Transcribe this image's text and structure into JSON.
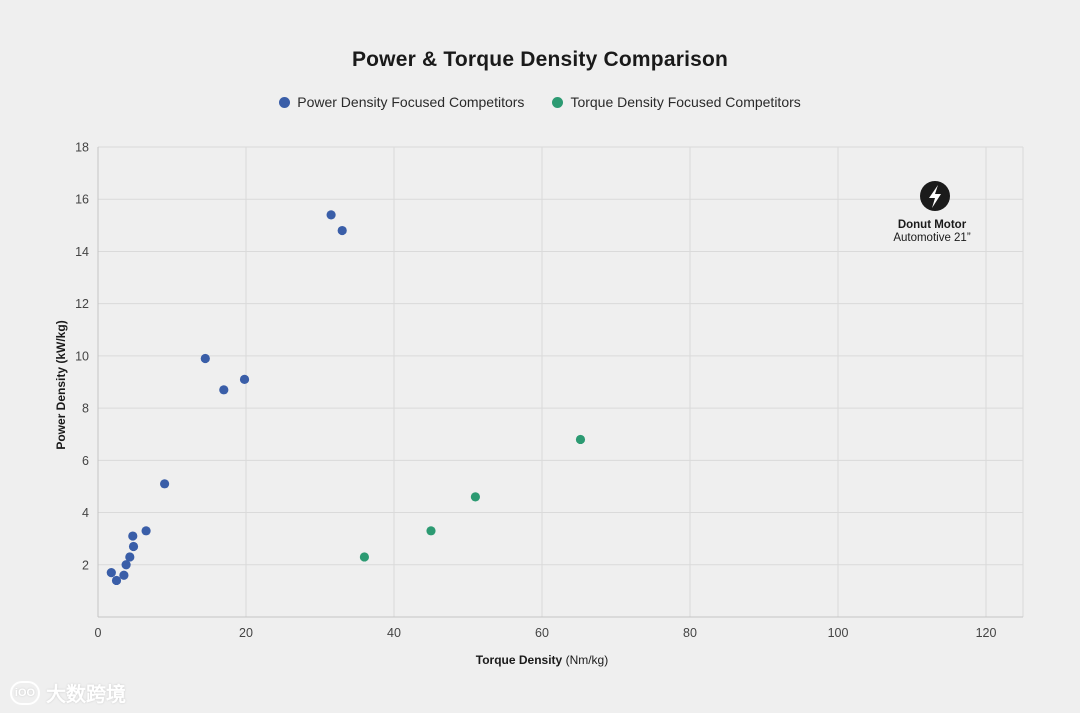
{
  "chart_data": {
    "type": "scatter",
    "title": "Power & Torque Density Comparison",
    "xlabel_bold": "Torque Density",
    "xlabel_unit": " (Nm/kg)",
    "ylabel": "Power Density (kW/kg)",
    "xlim": [
      0,
      125
    ],
    "ylim": [
      0,
      18
    ],
    "xticks": [
      0,
      20,
      40,
      60,
      80,
      100,
      120
    ],
    "yticks": [
      2,
      4,
      6,
      8,
      10,
      12,
      14,
      16,
      18
    ],
    "grid": true,
    "legend_position": "top-center",
    "series": [
      {
        "name": "Power Density Focused Competitors",
        "color": "#3a5ea8",
        "points": [
          {
            "x": 1.8,
            "y": 1.7
          },
          {
            "x": 2.5,
            "y": 1.4
          },
          {
            "x": 3.5,
            "y": 1.6
          },
          {
            "x": 3.8,
            "y": 2.0
          },
          {
            "x": 4.3,
            "y": 2.3
          },
          {
            "x": 4.8,
            "y": 2.7
          },
          {
            "x": 4.7,
            "y": 3.1
          },
          {
            "x": 6.5,
            "y": 3.3
          },
          {
            "x": 9.0,
            "y": 5.1
          },
          {
            "x": 14.5,
            "y": 9.9
          },
          {
            "x": 17.0,
            "y": 8.7
          },
          {
            "x": 19.8,
            "y": 9.1
          },
          {
            "x": 31.5,
            "y": 15.4
          },
          {
            "x": 33.0,
            "y": 14.8
          }
        ]
      },
      {
        "name": "Torque Density Focused Competitors",
        "color": "#2c9a72",
        "points": [
          {
            "x": 36.0,
            "y": 2.3
          },
          {
            "x": 45.0,
            "y": 3.3
          },
          {
            "x": 51.0,
            "y": 4.6
          },
          {
            "x": 65.2,
            "y": 6.8
          }
        ]
      }
    ],
    "annotation": {
      "title": "Donut Motor",
      "subtitle": "Automotive 21”",
      "icon": "lightning-bolt-icon"
    }
  },
  "watermark": {
    "logo_text": "iOO",
    "text": "大数跨境"
  }
}
